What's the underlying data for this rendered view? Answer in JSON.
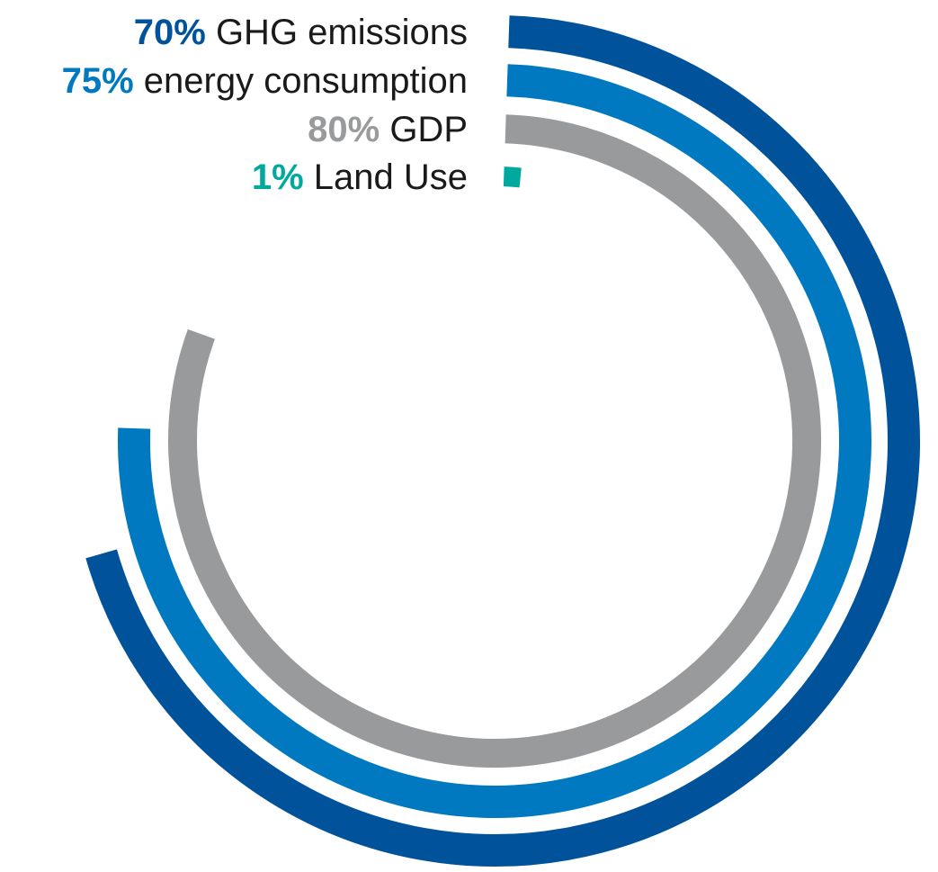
{
  "chart_data": {
    "type": "radial-bar",
    "series": [
      {
        "label": "GHG emissions",
        "percent_label": "70%",
        "value": 70,
        "color": "#00539b"
      },
      {
        "label": "energy consumption",
        "percent_label": "75%",
        "value": 75,
        "color": "#0079c1"
      },
      {
        "label": "GDP",
        "percent_label": "80%",
        "value": 80,
        "color": "#999a9c"
      },
      {
        "label": "Land Use",
        "percent_label": "1%",
        "value": 1,
        "color": "#00a99d"
      }
    ],
    "max": 100,
    "grid": false
  }
}
